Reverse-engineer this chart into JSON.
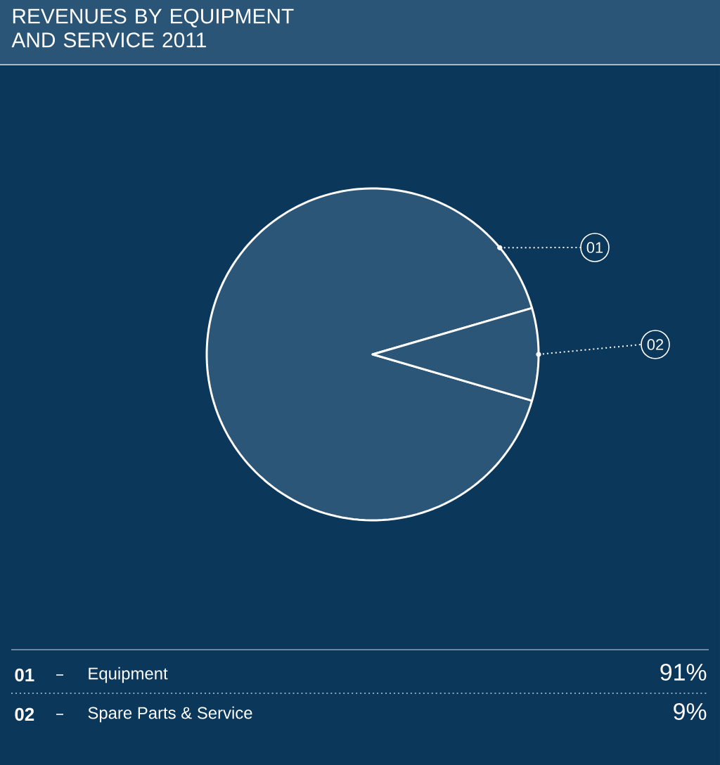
{
  "chart_data": {
    "type": "pie",
    "title": "REVENUES BY EQUIPMENT AND SERVICE 2011",
    "categories": [
      "Equipment",
      "Spare Parts & Service"
    ],
    "values": [
      91,
      9
    ],
    "value_labels": [
      "91%",
      "9%"
    ],
    "colors": [
      "#2c5677",
      "#2c5677"
    ],
    "annotations": [
      "01",
      "02"
    ],
    "legend": "bottom"
  }
}
